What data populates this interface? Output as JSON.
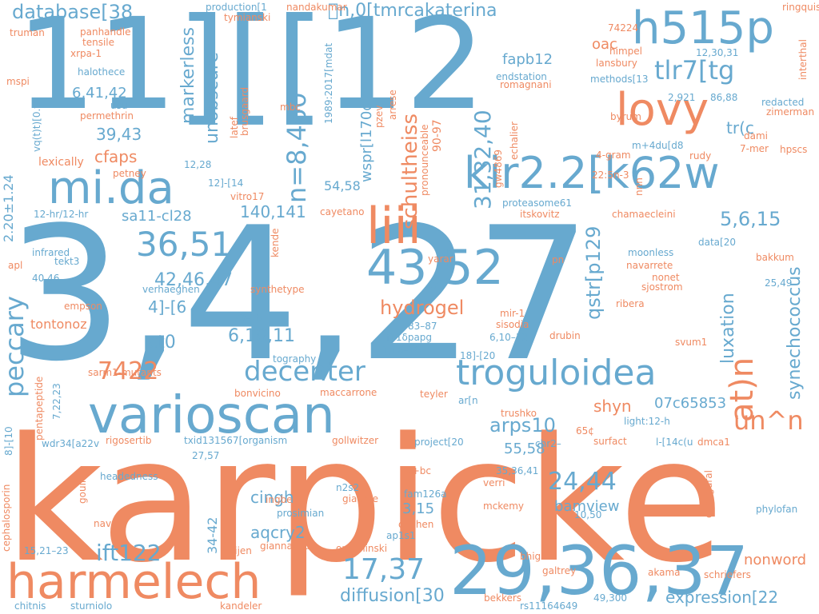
{
  "palette": {
    "blue": "#67a9cf",
    "orange": "#ef8a62",
    "background": "#ffffff"
  },
  "words": [
    {
      "text": "karpicke",
      "color": "orange"
    },
    {
      "text": "3,4,27",
      "color": "blue"
    },
    {
      "text": "11][[12",
      "color": "blue"
    },
    {
      "text": "29,36,37",
      "color": "blue"
    },
    {
      "text": "harmelech",
      "color": "orange"
    },
    {
      "text": "varioscan",
      "color": "blue"
    },
    {
      "text": "h515p",
      "color": "blue"
    },
    {
      "text": "lovy",
      "color": "orange"
    },
    {
      "text": "kir2.2[k62w",
      "color": "blue"
    },
    {
      "text": "mi.da",
      "color": "blue"
    },
    {
      "text": "troguloidea",
      "color": "blue"
    },
    {
      "text": "liii",
      "color": "orange"
    },
    {
      "text": "43,52",
      "color": "blue"
    },
    {
      "text": "36,51",
      "color": "blue"
    },
    {
      "text": "decenter",
      "color": "blue"
    },
    {
      "text": "n=8,460",
      "color": "blue"
    },
    {
      "text": "un^n",
      "color": "orange"
    },
    {
      "text": "tlr7[tg",
      "color": "blue"
    },
    {
      "text": "database[38",
      "color": "blue"
    },
    {
      "text": "\u0000n,0[tmrcakaterina",
      "color": "blue"
    },
    {
      "text": "peccary",
      "color": "blue"
    },
    {
      "text": "7422",
      "color": "orange"
    },
    {
      "text": "hydrogel",
      "color": "orange"
    },
    {
      "text": "6,10,11",
      "color": "blue"
    },
    {
      "text": "42,46,47",
      "color": "blue"
    },
    {
      "text": "17,37",
      "color": "blue"
    },
    {
      "text": "24,44",
      "color": "blue"
    },
    {
      "text": "ift122",
      "color": "blue"
    },
    {
      "text": "arps10",
      "color": "blue"
    },
    {
      "text": "diffusion[30",
      "color": "blue"
    },
    {
      "text": "at)n",
      "color": "orange"
    },
    {
      "text": "expression[22",
      "color": "blue"
    },
    {
      "text": "schultheiss",
      "color": "orange"
    },
    {
      "text": "unobscure",
      "color": "blue"
    },
    {
      "text": "markerless",
      "color": "blue"
    },
    {
      "text": "31,32,40",
      "color": "blue"
    },
    {
      "text": "qstr[p129",
      "color": "blue"
    },
    {
      "text": "luxation",
      "color": "blue"
    },
    {
      "text": "synechococcus",
      "color": "blue"
    },
    {
      "text": "5,6,15",
      "color": "blue"
    },
    {
      "text": "140,141",
      "color": "blue"
    },
    {
      "text": "sa11-cl28",
      "color": "blue"
    },
    {
      "text": "cfaps",
      "color": "orange"
    },
    {
      "text": "39,43",
      "color": "blue"
    },
    {
      "text": "6,41,42",
      "color": "blue"
    },
    {
      "text": "fapb12",
      "color": "blue"
    },
    {
      "text": "oac",
      "color": "orange"
    },
    {
      "text": "tr(c",
      "color": "blue"
    },
    {
      "text": "4]-[6",
      "color": "blue"
    },
    {
      "text": "ct0",
      "color": "blue"
    },
    {
      "text": "tontonoz",
      "color": "orange"
    },
    {
      "text": "shyn",
      "color": "orange"
    },
    {
      "text": "07c65853",
      "color": "blue"
    },
    {
      "text": "55,58",
      "color": "blue"
    },
    {
      "text": "aqcry2",
      "color": "blue"
    },
    {
      "text": "cingh",
      "color": "blue"
    },
    {
      "text": "bamview",
      "color": "blue"
    },
    {
      "text": "3,15",
      "color": "blue"
    },
    {
      "text": "nonword",
      "color": "orange"
    },
    {
      "text": "wspr[l170d",
      "color": "blue"
    },
    {
      "text": "54,58",
      "color": "blue"
    },
    {
      "text": "90-97",
      "color": "orange"
    },
    {
      "text": "2.20±1.24",
      "color": "blue"
    },
    {
      "text": "34-42",
      "color": "blue"
    },
    {
      "text": "lexically",
      "color": "orange"
    },
    {
      "text": "vq(t)t)[0.t",
      "color": "blue"
    },
    {
      "text": "mir-1",
      "color": "orange"
    },
    {
      "text": "truman",
      "color": "orange"
    },
    {
      "text": "panhandle",
      "color": "orange"
    },
    {
      "text": "tensile",
      "color": "orange"
    },
    {
      "text": "xrpa-1",
      "color": "orange"
    },
    {
      "text": "halothece",
      "color": "blue"
    },
    {
      "text": "mspi",
      "color": "orange"
    },
    {
      "text": "usu",
      "color": "blue"
    },
    {
      "text": "permethrin",
      "color": "orange"
    },
    {
      "text": "petney",
      "color": "orange"
    },
    {
      "text": "12,28",
      "color": "blue"
    },
    {
      "text": "12-hr/12-hr",
      "color": "blue"
    },
    {
      "text": "infrared",
      "color": "blue"
    },
    {
      "text": "tekt3",
      "color": "blue"
    },
    {
      "text": "apl",
      "color": "orange"
    },
    {
      "text": "40,46",
      "color": "blue"
    },
    {
      "text": "empson",
      "color": "orange"
    },
    {
      "text": "verhaeghen",
      "color": "blue"
    },
    {
      "text": "synthetype",
      "color": "orange"
    },
    {
      "text": "73–78",
      "color": "blue"
    },
    {
      "text": "production[1",
      "color": "blue"
    },
    {
      "text": "tymianski",
      "color": "orange"
    },
    {
      "text": "nandakumar",
      "color": "orange"
    },
    {
      "text": "1989:2017[mdat",
      "color": "blue"
    },
    {
      "text": "latef",
      "color": "orange"
    },
    {
      "text": "brusgaard",
      "color": "orange"
    },
    {
      "text": "mbc",
      "color": "orange"
    },
    {
      "text": "12]-[14",
      "color": "blue"
    },
    {
      "text": "vitro17",
      "color": "orange"
    },
    {
      "text": "pzev",
      "color": "orange"
    },
    {
      "text": "arrese",
      "color": "orange"
    },
    {
      "text": "pronounceable",
      "color": "orange"
    },
    {
      "text": "gw4869",
      "color": "orange"
    },
    {
      "text": "echalier",
      "color": "orange"
    },
    {
      "text": "endstation",
      "color": "blue"
    },
    {
      "text": "romagnani",
      "color": "orange"
    },
    {
      "text": "74224",
      "color": "orange"
    },
    {
      "text": "himpel",
      "color": "orange"
    },
    {
      "text": "lansbury",
      "color": "orange"
    },
    {
      "text": "methods[13",
      "color": "blue"
    },
    {
      "text": "12,30,31",
      "color": "blue"
    },
    {
      "text": "ringquist",
      "color": "orange"
    },
    {
      "text": "interthal",
      "color": "orange"
    },
    {
      "text": "2,921",
      "color": "blue"
    },
    {
      "text": "86,88",
      "color": "blue"
    },
    {
      "text": "redacted",
      "color": "blue"
    },
    {
      "text": "zimerman",
      "color": "orange"
    },
    {
      "text": "byrum",
      "color": "orange"
    },
    {
      "text": "dami",
      "color": "orange"
    },
    {
      "text": "7-mer",
      "color": "orange"
    },
    {
      "text": "hpscs",
      "color": "orange"
    },
    {
      "text": "m+4du[d8",
      "color": "blue"
    },
    {
      "text": "rudy",
      "color": "orange"
    },
    {
      "text": "4-gram",
      "color": "orange"
    },
    {
      "text": "22:5n-3",
      "color": "orange"
    },
    {
      "text": "nnn",
      "color": "orange"
    },
    {
      "text": "proteasome61",
      "color": "blue"
    },
    {
      "text": "itskovitz",
      "color": "orange"
    },
    {
      "text": "chamaecleini",
      "color": "orange"
    },
    {
      "text": "cayetano",
      "color": "orange"
    },
    {
      "text": "moonless",
      "color": "blue"
    },
    {
      "text": "navarrete",
      "color": "orange"
    },
    {
      "text": "nonet",
      "color": "orange"
    },
    {
      "text": "sjostrom",
      "color": "orange"
    },
    {
      "text": "data[20",
      "color": "blue"
    },
    {
      "text": "bakkum",
      "color": "orange"
    },
    {
      "text": "25,49",
      "color": "blue"
    },
    {
      "text": "pn",
      "color": "orange"
    },
    {
      "text": "yarar",
      "color": "orange"
    },
    {
      "text": "kende",
      "color": "orange"
    },
    {
      "text": "ribera",
      "color": "orange"
    },
    {
      "text": "svum1",
      "color": "orange"
    },
    {
      "text": "drubin",
      "color": "orange"
    },
    {
      "text": "sisodia",
      "color": "orange"
    },
    {
      "text": "83–87",
      "color": "blue"
    },
    {
      "text": "f11δpapg",
      "color": "blue"
    },
    {
      "text": "6,10–12",
      "color": "blue"
    },
    {
      "text": "1,16–18",
      "color": "blue"
    },
    {
      "text": "tography",
      "color": "blue"
    },
    {
      "text": "18]-[20",
      "color": "blue"
    },
    {
      "text": "teyler",
      "color": "orange"
    },
    {
      "text": "ar[n",
      "color": "blue"
    },
    {
      "text": "trushko",
      "color": "orange"
    },
    {
      "text": "light:12-h",
      "color": "blue"
    },
    {
      "text": "65¢",
      "color": "orange"
    },
    {
      "text": "surfact",
      "color": "orange"
    },
    {
      "text": "chr2–",
      "color": "blue"
    },
    {
      "text": "l-[14c(u",
      "color": "blue"
    },
    {
      "text": "dmca1",
      "color": "orange"
    },
    {
      "text": "pentapeptide",
      "color": "orange"
    },
    {
      "text": "7,22,23",
      "color": "blue"
    },
    {
      "text": "sarm1-mutants",
      "color": "orange"
    },
    {
      "text": "bonvicino",
      "color": "orange"
    },
    {
      "text": "maccarrone",
      "color": "orange"
    },
    {
      "text": "8]-[10",
      "color": "blue"
    },
    {
      "text": "wdr34[a22v",
      "color": "blue"
    },
    {
      "text": "rigosertib",
      "color": "orange"
    },
    {
      "text": "txid131567[organism",
      "color": "blue"
    },
    {
      "text": "gollwitzer",
      "color": "orange"
    },
    {
      "text": "project[20",
      "color": "blue"
    },
    {
      "text": "27,57",
      "color": "blue"
    },
    {
      "text": "35,36,41",
      "color": "blue"
    },
    {
      "text": "verri",
      "color": "orange"
    },
    {
      "text": "pv+bc",
      "color": "orange"
    },
    {
      "text": "fam126a",
      "color": "blue"
    },
    {
      "text": "n2s2",
      "color": "blue"
    },
    {
      "text": "giaume",
      "color": "orange"
    },
    {
      "text": "ingber",
      "color": "orange"
    },
    {
      "text": "headedness",
      "color": "blue"
    },
    {
      "text": "gouil",
      "color": "orange"
    },
    {
      "text": "cephalosporin",
      "color": "orange"
    },
    {
      "text": "nav",
      "color": "orange"
    },
    {
      "text": "prosimian",
      "color": "blue"
    },
    {
      "text": "mckemy",
      "color": "orange"
    },
    {
      "text": "10,50",
      "color": "blue"
    },
    {
      "text": "duchen",
      "color": "orange"
    },
    {
      "text": "ap1s1",
      "color": "blue"
    },
    {
      "text": "phylofan",
      "color": "blue"
    },
    {
      "text": "configural",
      "color": "orange"
    },
    {
      "text": "15,21–23",
      "color": "blue"
    },
    {
      "text": "sijen",
      "color": "orange"
    },
    {
      "text": "giannakou",
      "color": "orange"
    },
    {
      "text": "omichinski",
      "color": "orange"
    },
    {
      "text": "bhigh",
      "color": "orange"
    },
    {
      "text": "galtrey",
      "color": "orange"
    },
    {
      "text": "akama",
      "color": "orange"
    },
    {
      "text": "schriefers",
      "color": "orange"
    },
    {
      "text": "chitnis",
      "color": "blue"
    },
    {
      "text": "sturniolo",
      "color": "blue"
    },
    {
      "text": "kandeler",
      "color": "orange"
    },
    {
      "text": "bekkers",
      "color": "orange"
    },
    {
      "text": "rs11164649",
      "color": "blue"
    },
    {
      "text": "49,300",
      "color": "blue"
    }
  ]
}
